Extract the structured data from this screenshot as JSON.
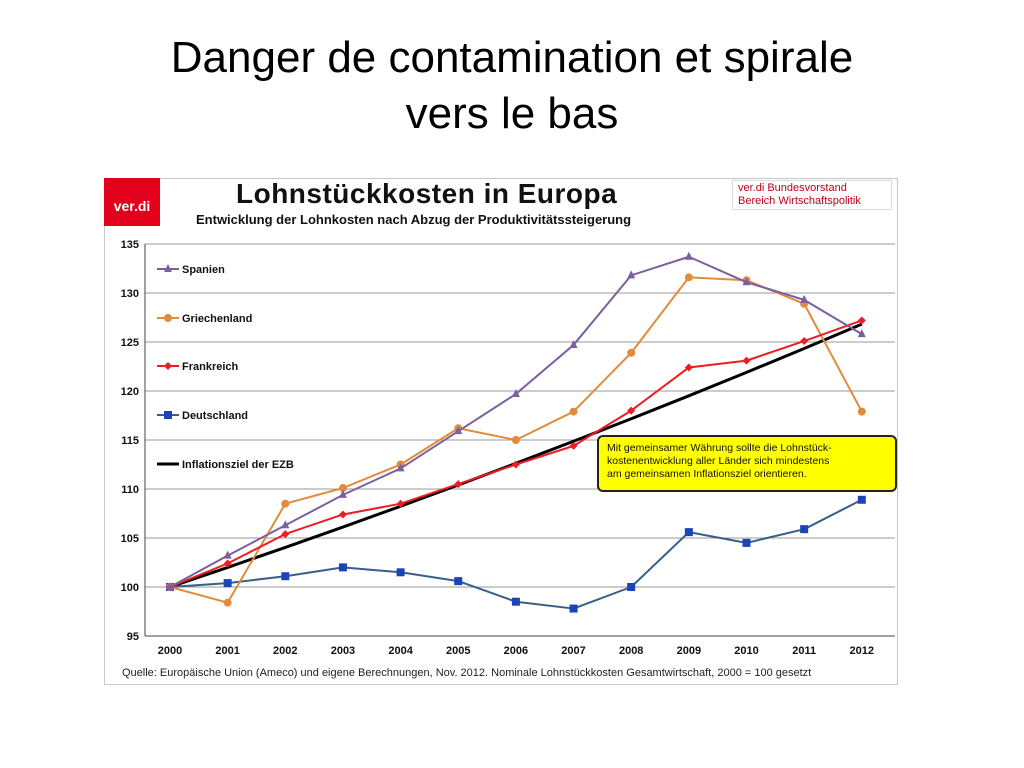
{
  "slide": {
    "title_line1": "Danger de contamination et spirale",
    "title_line2": "vers le bas"
  },
  "logo": {
    "text": "ver.di",
    "color": "#e2001a"
  },
  "credit": {
    "line1": "ver.di Bundesvorstand",
    "line2": "Bereich Wirtschaftspolitik"
  },
  "annotation": {
    "line1": "Mit gemeinsamer Währung sollte die Lohnstück-",
    "line2": "kostenentwicklung aller Länder sich mindestens",
    "line3": "am gemeinsamen Inflationsziel orientieren.",
    "background": "#ffff00"
  },
  "chart_data": {
    "type": "line",
    "title": "Lohnstückkosten in Europa",
    "subtitle": "Entwicklung der Lohnkosten nach Abzug der Produktivitätssteigerung",
    "source": "Quelle: Europäische Union (Ameco) und eigene Berechnungen, Nov. 2012. Nominale Lohnstückkosten Gesamtwirtschaft, 2000 = 100 gesetzt",
    "x": [
      2000,
      2001,
      2002,
      2003,
      2004,
      2005,
      2006,
      2007,
      2008,
      2009,
      2010,
      2011,
      2012
    ],
    "x_tick_labels": [
      "2000",
      "2001",
      "2002",
      "2003",
      "2004",
      "2005",
      "2006",
      "2007",
      "2008",
      "2009",
      "2010",
      "2011",
      "2012"
    ],
    "ylim": [
      95,
      135
    ],
    "y_ticks": [
      95,
      100,
      105,
      110,
      115,
      120,
      125,
      130,
      135
    ],
    "grid": "horizontal",
    "legend": "top-left",
    "series": [
      {
        "name": "Spanien",
        "color": "#7b5fa0",
        "marker": "triangle",
        "values": [
          100,
          103.2,
          106.3,
          109.4,
          112.1,
          115.9,
          119.7,
          124.7,
          131.8,
          133.7,
          131.1,
          129.3,
          125.8
        ]
      },
      {
        "name": "Griechenland",
        "color": "#e08c3c",
        "marker": "circle",
        "values": [
          100,
          98.4,
          108.5,
          110.1,
          112.5,
          116.2,
          115.0,
          117.9,
          123.9,
          131.6,
          131.3,
          128.9,
          117.9
        ]
      },
      {
        "name": "Frankreich",
        "color": "#ee1c24",
        "marker": "diamond",
        "values": [
          100,
          102.4,
          105.4,
          107.4,
          108.5,
          110.5,
          112.5,
          114.4,
          118.0,
          122.4,
          123.1,
          125.1,
          127.2
        ]
      },
      {
        "name": "Deutschland",
        "color": "#1a44b8",
        "line_color": "#3a5f86",
        "marker": "square",
        "values": [
          100,
          100.4,
          101.1,
          102.0,
          101.5,
          100.6,
          98.5,
          97.8,
          100.0,
          105.6,
          104.5,
          105.9,
          108.9
        ]
      },
      {
        "name": "Inflationsziel der EZB",
        "color": "#000000",
        "marker": "none",
        "line_width": "thick",
        "values": [
          100,
          102,
          104.04,
          106.12,
          108.24,
          110.41,
          112.62,
          114.87,
          117.17,
          119.51,
          121.9,
          124.34,
          126.82
        ]
      }
    ]
  }
}
